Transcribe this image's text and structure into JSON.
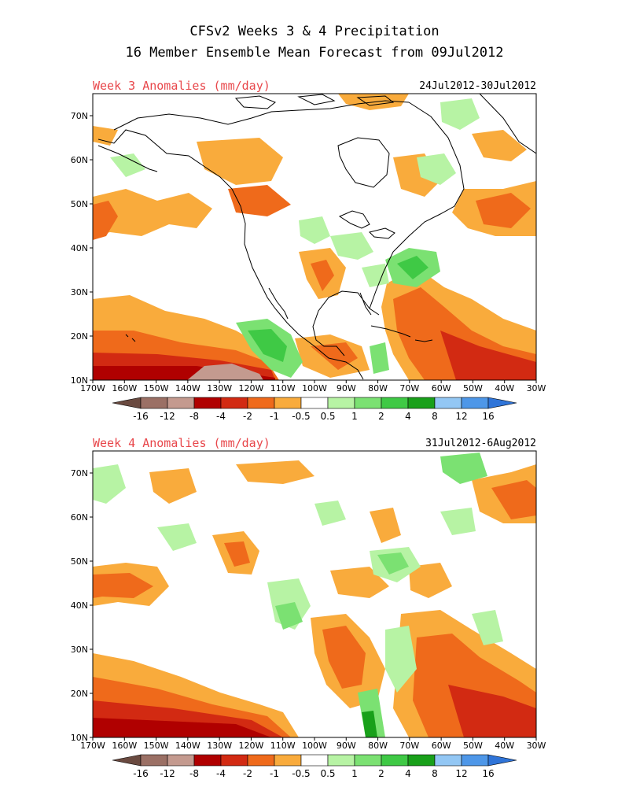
{
  "title": {
    "line1": "CFSv2 Weeks 3 & 4 Precipitation",
    "line2": "16 Member Ensemble Mean Forecast from 09Jul2012"
  },
  "panels": [
    {
      "label": "Week 3 Anomalies (mm/day)",
      "dates": "24Jul2012-30Jul2012"
    },
    {
      "label": "Week 4 Anomalies (mm/day)",
      "dates": "31Jul2012-6Aug2012"
    }
  ],
  "axes": {
    "lat_labels": [
      "70N",
      "60N",
      "50N",
      "40N",
      "30N",
      "20N",
      "10N"
    ],
    "lon_labels": [
      "170W",
      "160W",
      "150W",
      "140W",
      "130W",
      "120W",
      "110W",
      "100W",
      "90W",
      "80W",
      "70W",
      "60W",
      "50W",
      "40W",
      "30W"
    ]
  },
  "colorbar": {
    "colors": [
      "#9b7065",
      "#c49a8f",
      "#b00000",
      "#d22a12",
      "#ef6a1b",
      "#f9ab3c",
      "#ffffff",
      "#b7f3a4",
      "#7be172",
      "#3fc945",
      "#19a01a",
      "#93c7f4",
      "#4e97e8"
    ],
    "tick_labels": [
      "-16",
      "-12",
      "-8",
      "-4",
      "-2",
      "-1",
      "-0.5",
      "0.5",
      "1",
      "2",
      "4",
      "8",
      "12",
      "16"
    ],
    "low_extend_color": "#6a4a40",
    "high_extend_color": "#2f74d8"
  }
}
